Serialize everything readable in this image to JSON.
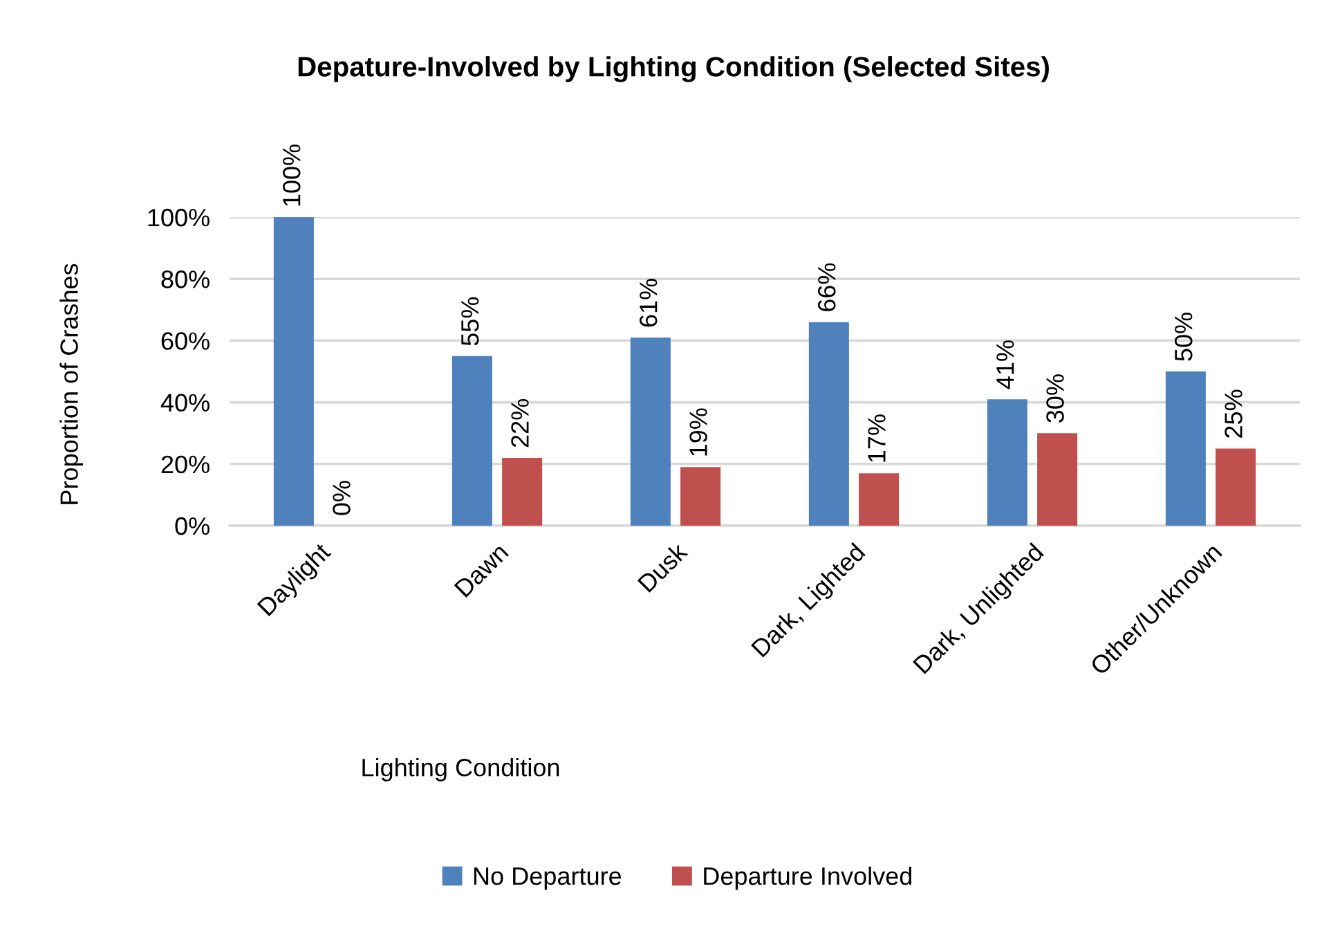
{
  "chart_data": {
    "type": "bar",
    "title": "Depature-Involved by Lighting Condition (Selected Sites)",
    "xlabel": "Lighting Condition",
    "ylabel": "Proportion of Crashes",
    "categories": [
      "Daylight",
      "Dawn",
      "Dusk",
      "Dark, Lighted",
      "Dark, Unlighted",
      "Other/Unknown"
    ],
    "series": [
      {
        "name": "No Departure",
        "color": "#4f81bd",
        "values": [
          100,
          55,
          61,
          66,
          41,
          50
        ],
        "value_labels": [
          "100%",
          "55%",
          "61%",
          "66%",
          "41%",
          "50%"
        ]
      },
      {
        "name": "Departure Involved",
        "color": "#c0504d",
        "values": [
          0,
          22,
          19,
          17,
          30,
          25
        ],
        "value_labels": [
          "0%",
          "22%",
          "19%",
          "17%",
          "30%",
          "25%"
        ]
      }
    ],
    "ylim": [
      0,
      100
    ],
    "yticks": [
      {
        "value": 0,
        "label": "0%"
      },
      {
        "value": 20,
        "label": "20%"
      },
      {
        "value": 40,
        "label": "40%"
      },
      {
        "value": 60,
        "label": "60%"
      },
      {
        "value": 80,
        "label": "80%"
      },
      {
        "value": 100,
        "label": "100%"
      }
    ],
    "grid": "y",
    "legend": "bottom"
  }
}
